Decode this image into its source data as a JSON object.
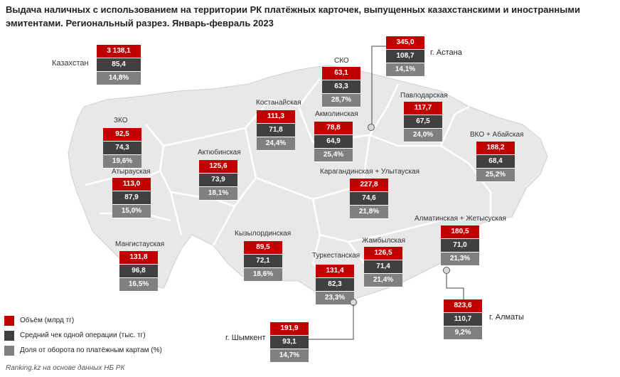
{
  "title": "Выдача наличных с использованием на территории РК платёжных карточек, выпущенных казахстанскими и иностранными эмитентами. Региональный разрез. Январь-февраль 2023",
  "colors": {
    "volume": "#c00000",
    "avg_check": "#404040",
    "share": "#808080",
    "map_fill": "#e8e8e8",
    "map_border": "#ffffff"
  },
  "legend": {
    "volume": "Объём (млрд тг)",
    "avg_check": "Средний чек одной операции (тыс. тг)",
    "share": "Доля от оборота по платёжным картам (%)"
  },
  "source": "Ranking.kz на основе данных НБ РК",
  "regions": {
    "kazakhstan": {
      "name": "Казахстан",
      "volume": "3 138,1",
      "avg": "85,4",
      "share": "14,8%"
    },
    "astana": {
      "name": "г. Астана",
      "volume": "345,0",
      "avg": "108,7",
      "share": "14,1%"
    },
    "sko": {
      "name": "СКО",
      "volume": "63,1",
      "avg": "63,3",
      "share": "28,7%"
    },
    "pavlodar": {
      "name": "Павлодарская",
      "volume": "117,7",
      "avg": "67,5",
      "share": "24,0%"
    },
    "kostanay": {
      "name": "Костанайская",
      "volume": "111,3",
      "avg": "71,8",
      "share": "24,4%"
    },
    "akmola": {
      "name": "Акмолинская",
      "volume": "78,8",
      "avg": "64,9",
      "share": "25,4%"
    },
    "zko": {
      "name": "ЗКО",
      "volume": "92,5",
      "avg": "74,3",
      "share": "19,6%"
    },
    "vko": {
      "name": "ВКО + Абайская",
      "volume": "188,2",
      "avg": "68,4",
      "share": "25,2%"
    },
    "aktobe": {
      "name": "Актюбинская",
      "volume": "125,6",
      "avg": "73,9",
      "share": "18,1%"
    },
    "atyrau": {
      "name": "Атырауская",
      "volume": "113,0",
      "avg": "87,9",
      "share": "15,0%"
    },
    "karaganda": {
      "name": "Карагандинская + Улытауская",
      "volume": "227,8",
      "avg": "74,6",
      "share": "21,8%"
    },
    "almaty_reg": {
      "name": "Алматинская + Жетысуская",
      "volume": "180,5",
      "avg": "71,0",
      "share": "21,3%"
    },
    "mangistau": {
      "name": "Мангистауская",
      "volume": "131,8",
      "avg": "96,8",
      "share": "16,5%"
    },
    "kyzylorda": {
      "name": "Кызылординская",
      "volume": "89,5",
      "avg": "72,1",
      "share": "18,6%"
    },
    "zhambyl": {
      "name": "Жамбылская",
      "volume": "126,5",
      "avg": "71,4",
      "share": "21,4%"
    },
    "turkestan": {
      "name": "Туркестанская",
      "volume": "131,4",
      "avg": "82,3",
      "share": "23,3%"
    },
    "almaty": {
      "name": "г. Алматы",
      "volume": "823,6",
      "avg": "110,7",
      "share": "9,2%"
    },
    "shymkent": {
      "name": "г. Шымкент",
      "volume": "191,9",
      "avg": "93,1",
      "share": "14,7%"
    }
  }
}
